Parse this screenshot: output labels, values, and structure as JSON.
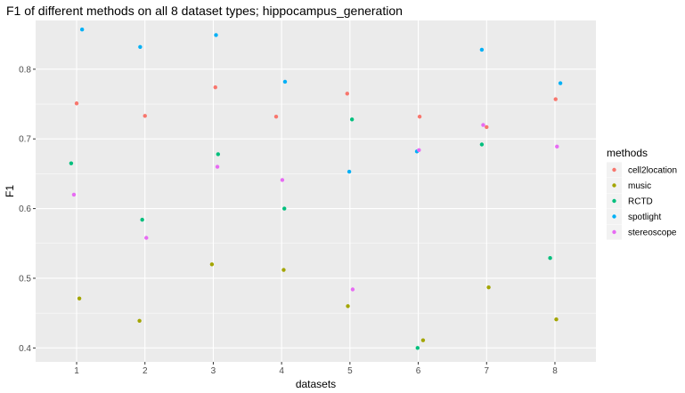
{
  "chart_data": {
    "type": "scatter",
    "title": "F1 of different methods on all 8 dataset types; hippocampus_generation",
    "xlabel": "datasets",
    "ylabel": "F1",
    "x_ticks": [
      "1",
      "2",
      "3",
      "4",
      "5",
      "6",
      "7",
      "8"
    ],
    "y_ticks": [
      "0.4",
      "0.5",
      "0.6",
      "0.7",
      "0.8"
    ],
    "xlim": [
      0.4,
      8.6
    ],
    "ylim": [
      0.38,
      0.87
    ],
    "grid": true,
    "legend": {
      "title": "methods",
      "position": "right"
    },
    "series": [
      {
        "name": "cell2location",
        "color": "#F8766D",
        "points": [
          {
            "x": 1.0,
            "y": 0.751
          },
          {
            "x": 2.0,
            "y": 0.733
          },
          {
            "x": 3.03,
            "y": 0.774
          },
          {
            "x": 3.92,
            "y": 0.732
          },
          {
            "x": 4.96,
            "y": 0.765
          },
          {
            "x": 6.02,
            "y": 0.732
          },
          {
            "x": 7.0,
            "y": 0.717
          },
          {
            "x": 8.01,
            "y": 0.757
          }
        ]
      },
      {
        "name": "music",
        "color": "#A3A500",
        "points": [
          {
            "x": 1.04,
            "y": 0.471
          },
          {
            "x": 1.92,
            "y": 0.439
          },
          {
            "x": 2.98,
            "y": 0.52
          },
          {
            "x": 4.03,
            "y": 0.512
          },
          {
            "x": 4.97,
            "y": 0.46
          },
          {
            "x": 6.07,
            "y": 0.411
          },
          {
            "x": 7.03,
            "y": 0.487
          },
          {
            "x": 8.02,
            "y": 0.441
          }
        ]
      },
      {
        "name": "RCTD",
        "color": "#00BF7D",
        "points": [
          {
            "x": 0.92,
            "y": 0.665
          },
          {
            "x": 1.96,
            "y": 0.584
          },
          {
            "x": 3.07,
            "y": 0.678
          },
          {
            "x": 4.04,
            "y": 0.6
          },
          {
            "x": 5.03,
            "y": 0.728
          },
          {
            "x": 5.99,
            "y": 0.4
          },
          {
            "x": 6.93,
            "y": 0.692
          },
          {
            "x": 7.93,
            "y": 0.529
          }
        ]
      },
      {
        "name": "spotlight",
        "color": "#00B0F6",
        "points": [
          {
            "x": 1.08,
            "y": 0.857
          },
          {
            "x": 1.93,
            "y": 0.832
          },
          {
            "x": 3.04,
            "y": 0.849
          },
          {
            "x": 4.05,
            "y": 0.782
          },
          {
            "x": 4.99,
            "y": 0.653
          },
          {
            "x": 5.98,
            "y": 0.682
          },
          {
            "x": 6.93,
            "y": 0.828
          },
          {
            "x": 8.08,
            "y": 0.78
          }
        ]
      },
      {
        "name": "stereoscope",
        "color": "#E76BF3",
        "points": [
          {
            "x": 0.96,
            "y": 0.62
          },
          {
            "x": 2.02,
            "y": 0.558
          },
          {
            "x": 3.06,
            "y": 0.66
          },
          {
            "x": 4.01,
            "y": 0.641
          },
          {
            "x": 5.04,
            "y": 0.484
          },
          {
            "x": 6.01,
            "y": 0.684
          },
          {
            "x": 6.95,
            "y": 0.72
          },
          {
            "x": 8.03,
            "y": 0.689
          }
        ]
      }
    ]
  }
}
